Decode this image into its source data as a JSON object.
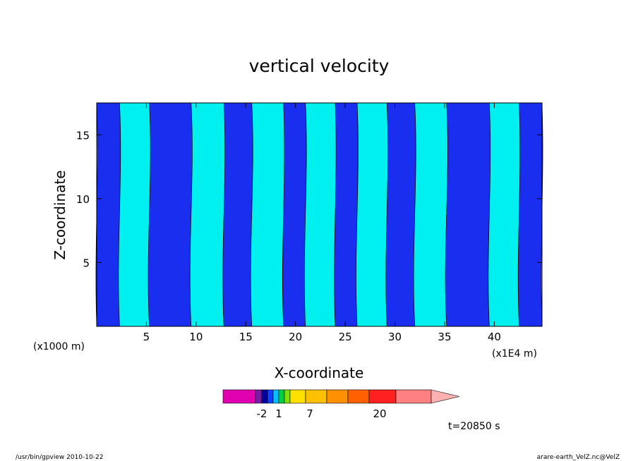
{
  "chart_data": {
    "type": "heatmap",
    "title": "vertical velocity",
    "xlabel": "X-coordinate",
    "ylabel": "Z-coordinate",
    "x_unit_left": "(x1000 m)",
    "x_unit_right": "(x1E4 m)",
    "xlim": [
      0,
      44.8
    ],
    "ylim": [
      0,
      17.5
    ],
    "x_ticks": [
      5,
      10,
      15,
      20,
      25,
      30,
      35,
      40
    ],
    "y_ticks": [
      5,
      10,
      15
    ],
    "time_label": "t=20850 s",
    "colorbar": {
      "labels": [
        {
          "value": -2,
          "text": "-2"
        },
        {
          "value": 1,
          "text": "1"
        },
        {
          "value": 7,
          "text": "7"
        },
        {
          "value": 20,
          "text": "20"
        }
      ],
      "colors": [
        "#e000b0",
        "#7a1aa8",
        "#0000a0",
        "#1040ff",
        "#00c0ff",
        "#00d040",
        "#80e000",
        "#ffe000",
        "#ffc000",
        "#ff9000",
        "#ff6000",
        "#ff2020",
        "#ff8080",
        "#ffb0b0"
      ],
      "extend": "max"
    },
    "dominant_levels": [
      {
        "name": "negative",
        "color": "#1a2ef0"
      },
      {
        "name": "positive",
        "color": "#00f0f0"
      }
    ],
    "bands": [
      {
        "x0": 0.0,
        "x1": 2.3,
        "level": "negative"
      },
      {
        "x0": 2.3,
        "x1": 5.3,
        "level": "positive"
      },
      {
        "x0": 5.3,
        "x1": 9.5,
        "level": "negative"
      },
      {
        "x0": 9.5,
        "x1": 12.8,
        "level": "positive"
      },
      {
        "x0": 12.8,
        "x1": 15.6,
        "level": "negative"
      },
      {
        "x0": 15.6,
        "x1": 18.8,
        "level": "positive"
      },
      {
        "x0": 18.8,
        "x1": 21.0,
        "level": "negative"
      },
      {
        "x0": 21.0,
        "x1": 24.0,
        "level": "positive"
      },
      {
        "x0": 24.0,
        "x1": 26.2,
        "level": "negative"
      },
      {
        "x0": 26.2,
        "x1": 29.2,
        "level": "positive"
      },
      {
        "x0": 29.2,
        "x1": 32.0,
        "level": "negative"
      },
      {
        "x0": 32.0,
        "x1": 35.2,
        "level": "positive"
      },
      {
        "x0": 35.2,
        "x1": 39.5,
        "level": "negative"
      },
      {
        "x0": 39.5,
        "x1": 42.5,
        "level": "positive"
      },
      {
        "x0": 42.5,
        "x1": 44.8,
        "level": "negative"
      }
    ]
  },
  "footer": {
    "left": "/usr/bin/gpview   2010-10-22",
    "right": "arare-earth_VelZ.nc@VelZ"
  }
}
